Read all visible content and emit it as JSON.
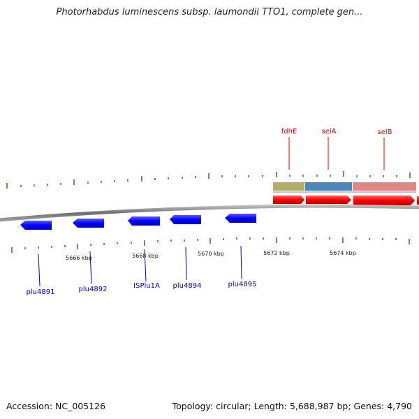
{
  "title": "Photorhabdus luminescens subsp. laumondii TTO1, complete gen...",
  "footer": {
    "accession": "Accession: NC_005126",
    "summary": "Topology: circular; Length: 5,688,987 bp; Genes: 4,790"
  },
  "scale_labels": [
    "5666 kbp",
    "5668 kbp",
    "5670 kbp",
    "5672 kbp",
    "5674 kbp"
  ],
  "forward_genes": [
    {
      "name": "fdhE",
      "band_color": "#b3ad6a"
    },
    {
      "name": "selA",
      "band_color": "#4f86b8"
    },
    {
      "name": "selB",
      "band_color": "#e38585"
    }
  ],
  "reverse_genes": [
    {
      "name": "plu4891"
    },
    {
      "name": "plu4892"
    },
    {
      "name": "ISPlu1A"
    },
    {
      "name": "plu4894"
    },
    {
      "name": "plu4895"
    }
  ],
  "colors": {
    "forward_gene": "#ff0000",
    "reverse_gene": "#0000ff",
    "tick": "#2a8a2a",
    "backbone": "#777777"
  }
}
